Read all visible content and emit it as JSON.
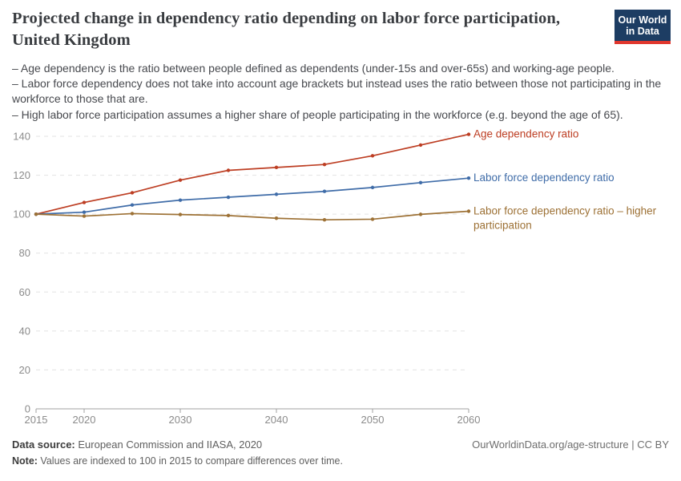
{
  "header": {
    "title": "Projected change in dependency ratio depending on labor force participation, United Kingdom",
    "logo_line1": "Our World",
    "logo_line2": "in Data",
    "subtitle_lines": [
      "– Age dependency is the ratio between people defined as dependents (under-15s and over-65s) and working-age people.",
      "– Labor force dependency does not take into account age brackets but instead uses the ratio between those not participating in the workforce to those that are.",
      "– High labor force participation assumes a higher share of people participating in the workforce (e.g. beyond the age of 65)."
    ]
  },
  "chart_data": {
    "type": "line",
    "title": "Projected change in dependency ratio depending on labor force participation, United Kingdom",
    "x": [
      2015,
      2020,
      2025,
      2030,
      2035,
      2040,
      2045,
      2050,
      2055,
      2060
    ],
    "series": [
      {
        "name": "Age dependency ratio",
        "color": "#bd3e23",
        "values": [
          100,
          106,
          111,
          117.5,
          122.5,
          124,
          125.5,
          130,
          135.5,
          141
        ],
        "label_lines": [
          "Age dependency ratio"
        ]
      },
      {
        "name": "Labor force dependency ratio",
        "color": "#3f6ca8",
        "values": [
          100,
          101,
          104.7,
          107.2,
          108.7,
          110.2,
          111.7,
          113.7,
          116.2,
          118.5
        ],
        "label_lines": [
          "Labor force dependency ratio"
        ]
      },
      {
        "name": "Labor force dependency ratio – higher participation",
        "color": "#9d7135",
        "values": [
          100,
          99,
          100.3,
          99.8,
          99.3,
          97.9,
          97.1,
          97.4,
          99.9,
          101.5
        ],
        "label_lines": [
          "Labor force dependency ratio – higher",
          "participation"
        ]
      }
    ],
    "ylim": [
      0,
      140
    ],
    "yticks": [
      0,
      20,
      40,
      60,
      80,
      100,
      120,
      140
    ],
    "xticks": [
      2015,
      2020,
      2030,
      2040,
      2050,
      2060
    ],
    "grid": "horizontal-dashed",
    "legend_position": "right-of-line-ends",
    "note": "Values indexed to 100 in 2015"
  },
  "colors": {
    "grid": "#e3e3e3",
    "axis": "#a1a1a1",
    "tick_label": "#8b8b8b",
    "logo_bg": "#1d3d63",
    "logo_stripe": "#e0372e"
  },
  "footer": {
    "source_label": "Data source:",
    "source_text": " European Commission and IIASA, 2020",
    "note_label": "Note:",
    "note_text": " Values are indexed to 100 in 2015 to compare differences over time.",
    "right_text": "OurWorldinData.org/age-structure | CC BY"
  }
}
